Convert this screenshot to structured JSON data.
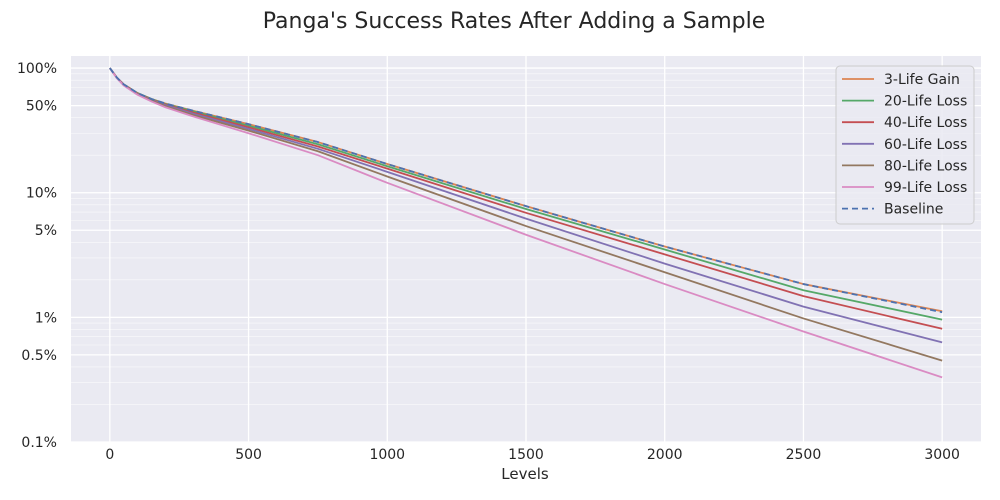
{
  "chart_data": {
    "type": "line",
    "title": "Panga's Success Rates After Adding a Sample",
    "xlabel": "Levels",
    "ylabel": "",
    "yscale": "log",
    "xlim": [
      -140,
      3140
    ],
    "ylim": [
      0.001,
      1.25
    ],
    "x_ticks": [
      0,
      500,
      1000,
      1500,
      2000,
      2500,
      3000
    ],
    "x_tick_labels": [
      "0",
      "500",
      "1000",
      "1500",
      "2000",
      "2500",
      "3000"
    ],
    "y_ticks": [
      1.0,
      0.5,
      0.1,
      0.05,
      0.01,
      0.005,
      0.001
    ],
    "y_tick_labels": [
      "100%",
      "50%",
      "10%",
      "5%",
      "1%",
      "0.5%",
      "0.1%"
    ],
    "grid": true,
    "legend_position": "top-right",
    "x": [
      0,
      25,
      50,
      100,
      150,
      200,
      300,
      500,
      750,
      1000,
      1500,
      2000,
      2500,
      3000
    ],
    "series": [
      {
        "name": "3-Life Gain",
        "color": "#dd8452",
        "dash": "solid",
        "values": [
          1.0,
          0.84,
          0.74,
          0.63,
          0.565,
          0.52,
          0.455,
          0.355,
          0.255,
          0.17,
          0.078,
          0.037,
          0.0185,
          0.0112
        ]
      },
      {
        "name": "20-Life Loss",
        "color": "#55a868",
        "dash": "solid",
        "values": [
          1.0,
          0.84,
          0.74,
          0.63,
          0.565,
          0.515,
          0.45,
          0.345,
          0.245,
          0.163,
          0.074,
          0.035,
          0.0165,
          0.0096
        ]
      },
      {
        "name": "40-Life Loss",
        "color": "#c44e52",
        "dash": "solid",
        "values": [
          1.0,
          0.84,
          0.74,
          0.625,
          0.56,
          0.51,
          0.44,
          0.335,
          0.235,
          0.156,
          0.069,
          0.032,
          0.0148,
          0.0081
        ]
      },
      {
        "name": "60-Life Loss",
        "color": "#8172b3",
        "dash": "solid",
        "values": [
          1.0,
          0.84,
          0.735,
          0.62,
          0.555,
          0.505,
          0.43,
          0.325,
          0.225,
          0.147,
          0.062,
          0.027,
          0.0122,
          0.0063
        ]
      },
      {
        "name": "80-Life Loss",
        "color": "#937860",
        "dash": "solid",
        "values": [
          1.0,
          0.835,
          0.73,
          0.615,
          0.55,
          0.495,
          0.42,
          0.315,
          0.215,
          0.135,
          0.054,
          0.023,
          0.0098,
          0.0045
        ]
      },
      {
        "name": "99-Life Loss",
        "color": "#da8bc3",
        "dash": "solid",
        "values": [
          1.0,
          0.83,
          0.725,
          0.61,
          0.54,
          0.485,
          0.41,
          0.3,
          0.2,
          0.12,
          0.046,
          0.0185,
          0.0077,
          0.0033
        ]
      },
      {
        "name": "Baseline",
        "color": "#4c72b0",
        "dash": "dashed",
        "values": [
          1.0,
          0.84,
          0.74,
          0.63,
          0.565,
          0.52,
          0.455,
          0.355,
          0.255,
          0.17,
          0.078,
          0.037,
          0.0185,
          0.011
        ]
      }
    ]
  }
}
